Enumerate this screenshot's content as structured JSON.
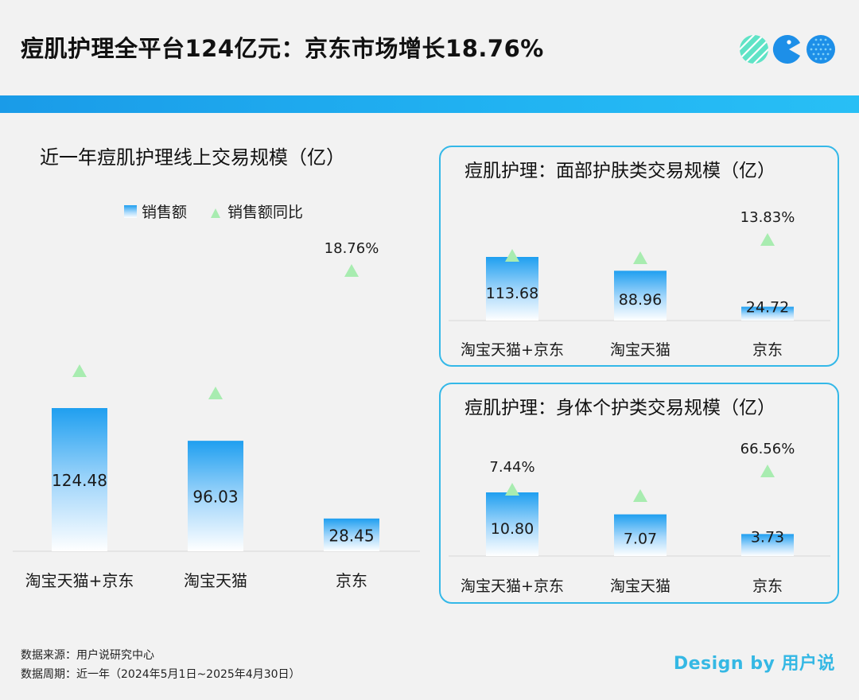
{
  "header": {
    "title": "痘肌护理全平台124亿元：京东市场增长18.76%"
  },
  "legend": {
    "sales_label": "销售额",
    "yoy_label": "销售额同比"
  },
  "colors": {
    "bar_top": "#1f9ff0",
    "bar_bottom": "#ffffff",
    "marker": "#a8ecb0",
    "panel_border": "#34b8e8",
    "stripe": "#1a9be8",
    "brand": "#35b8e4"
  },
  "chart_data": [
    {
      "type": "bar",
      "title": "近一年痘肌护理线上交易规模（亿）",
      "categories": [
        "淘宝天猫+京东",
        "淘宝天猫",
        "京东"
      ],
      "series": [
        {
          "name": "销售额",
          "values": [
            124.48,
            96.03,
            28.45
          ],
          "labels": [
            "124.48",
            "96.03",
            "28.45"
          ]
        },
        {
          "name": "销售额同比",
          "labels": [
            "",
            "",
            "18.76%"
          ]
        }
      ],
      "legend_position": "top-center",
      "grid": false
    },
    {
      "type": "bar",
      "title": "痘肌护理：面部护肤类交易规模（亿）",
      "categories": [
        "淘宝天猫+京东",
        "淘宝天猫",
        "京东"
      ],
      "series": [
        {
          "name": "销售额",
          "values": [
            113.68,
            88.96,
            24.72
          ],
          "labels": [
            "113.68",
            "88.96",
            "24.72"
          ]
        },
        {
          "name": "销售额同比",
          "labels": [
            "",
            "",
            "13.83%"
          ]
        }
      ],
      "grid": false
    },
    {
      "type": "bar",
      "title": "痘肌护理：身体个护类交易规模（亿）",
      "categories": [
        "淘宝天猫+京东",
        "淘宝天猫",
        "京东"
      ],
      "series": [
        {
          "name": "销售额",
          "values": [
            10.8,
            7.07,
            3.73
          ],
          "labels": [
            "10.80",
            "7.07",
            "3.73"
          ]
        },
        {
          "name": "销售额同比",
          "labels": [
            "7.44%",
            "",
            "66.56%"
          ]
        }
      ],
      "grid": false
    }
  ],
  "footer": {
    "source_line": "数据来源：用户说研究中心",
    "period_line": "数据周期：近一年（2024年5月1日~2025年4月30日）",
    "brand": "Design by 用户说"
  }
}
